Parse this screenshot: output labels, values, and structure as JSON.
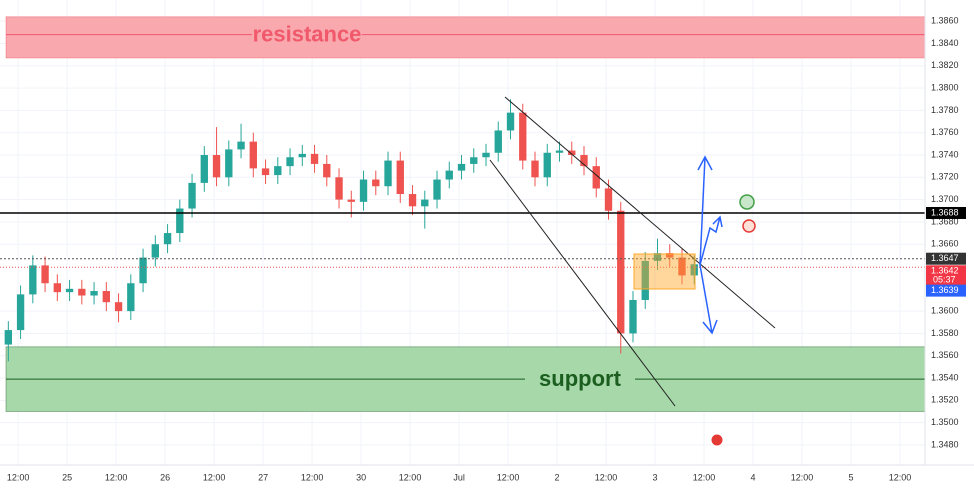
{
  "chart_data": {
    "type": "candlestick",
    "xlim": [
      -0.37,
      18.51
    ],
    "ylim": [
      1.3462,
      1.3879
    ],
    "xticks": [
      {
        "value": 0,
        "label": "12:00"
      },
      {
        "value": 1,
        "label": "25"
      },
      {
        "value": 2,
        "label": "12:00"
      },
      {
        "value": 3,
        "label": "26"
      },
      {
        "value": 4,
        "label": "12:00"
      },
      {
        "value": 5,
        "label": "27"
      },
      {
        "value": 6,
        "label": "12:00"
      },
      {
        "value": 7,
        "label": "30"
      },
      {
        "value": 8,
        "label": "12:00"
      },
      {
        "value": 9,
        "label": "Jul"
      },
      {
        "value": 10,
        "label": "12:00"
      },
      {
        "value": 11,
        "label": "2"
      },
      {
        "value": 12,
        "label": "12:00"
      },
      {
        "value": 13,
        "label": "3"
      },
      {
        "value": 14,
        "label": "12:00"
      },
      {
        "value": 15,
        "label": "4"
      },
      {
        "value": 16,
        "label": "12:00"
      },
      {
        "value": 17,
        "label": "5"
      },
      {
        "value": 18,
        "label": "12:00"
      }
    ],
    "yticks": [
      {
        "value": 1.386,
        "label": "1.3860"
      },
      {
        "value": 1.384,
        "label": "1.3840"
      },
      {
        "value": 1.382,
        "label": "1.3820"
      },
      {
        "value": 1.38,
        "label": "1.3800"
      },
      {
        "value": 1.378,
        "label": "1.3780"
      },
      {
        "value": 1.376,
        "label": "1.3760"
      },
      {
        "value": 1.374,
        "label": "1.3740"
      },
      {
        "value": 1.372,
        "label": "1.3720"
      },
      {
        "value": 1.37,
        "label": "1.3700"
      },
      {
        "value": 1.368,
        "label": "1.3680"
      },
      {
        "value": 1.366,
        "label": "1.3660"
      },
      {
        "value": 1.36,
        "label": "1.3600"
      },
      {
        "value": 1.358,
        "label": "1.3580"
      },
      {
        "value": 1.356,
        "label": "1.3560"
      },
      {
        "value": 1.354,
        "label": "1.3540"
      },
      {
        "value": 1.352,
        "label": "1.3520"
      },
      {
        "value": 1.35,
        "label": "1.3500"
      },
      {
        "value": 1.348,
        "label": "1.3480"
      }
    ],
    "grid": true,
    "up_color": "#26a69a",
    "down_color": "#ef5350",
    "x": [
      -0.2,
      0.05,
      0.3,
      0.55,
      0.8,
      1.05,
      1.3,
      1.55,
      1.8,
      2.05,
      2.3,
      2.55,
      2.8,
      3.05,
      3.3,
      3.55,
      3.8,
      4.05,
      4.3,
      4.55,
      4.8,
      5.05,
      5.3,
      5.55,
      5.8,
      6.05,
      6.3,
      6.55,
      6.8,
      7.05,
      7.3,
      7.55,
      7.8,
      8.05,
      8.3,
      8.55,
      8.8,
      9.05,
      9.3,
      9.55,
      9.8,
      10.05,
      10.3,
      10.55,
      10.8,
      11.05,
      11.3,
      11.55,
      11.8,
      12.05,
      12.3,
      12.55,
      12.8,
      13.05,
      13.3,
      13.55,
      13.8
    ],
    "open": [
      1.357,
      1.3583,
      1.3615,
      1.3641,
      1.3625,
      1.3617,
      1.362,
      1.3614,
      1.3618,
      1.3608,
      1.36,
      1.3625,
      1.3648,
      1.366,
      1.367,
      1.3692,
      1.3715,
      1.374,
      1.372,
      1.3745,
      1.3752,
      1.3728,
      1.3722,
      1.373,
      1.3738,
      1.3741,
      1.3732,
      1.372,
      1.37,
      1.3698,
      1.3718,
      1.3712,
      1.3735,
      1.3705,
      1.3694,
      1.37,
      1.3718,
      1.3726,
      1.3732,
      1.3738,
      1.3742,
      1.3762,
      1.3778,
      1.3735,
      1.372,
      1.3742,
      1.3744,
      1.374,
      1.373,
      1.371,
      1.369,
      1.358,
      1.361,
      1.3645,
      1.3652,
      1.3648,
      1.3632
    ],
    "high": [
      1.3591,
      1.3623,
      1.365,
      1.3649,
      1.3633,
      1.3628,
      1.3628,
      1.3626,
      1.3626,
      1.3616,
      1.3633,
      1.3656,
      1.3668,
      1.3678,
      1.37,
      1.3723,
      1.3748,
      1.3765,
      1.3753,
      1.3768,
      1.376,
      1.3736,
      1.3738,
      1.3746,
      1.3749,
      1.3749,
      1.374,
      1.3728,
      1.3708,
      1.3726,
      1.3726,
      1.3743,
      1.3743,
      1.3713,
      1.3708,
      1.3726,
      1.3734,
      1.374,
      1.3746,
      1.375,
      1.377,
      1.379,
      1.3786,
      1.3743,
      1.375,
      1.3752,
      1.3752,
      1.3748,
      1.3738,
      1.3718,
      1.3698,
      1.3618,
      1.3653,
      1.3665,
      1.366,
      1.3656,
      1.365
    ],
    "low": [
      1.3555,
      1.3575,
      1.3607,
      1.3617,
      1.3609,
      1.3609,
      1.3606,
      1.3606,
      1.36,
      1.359,
      1.3592,
      1.3617,
      1.364,
      1.3652,
      1.3662,
      1.3684,
      1.3707,
      1.3712,
      1.3712,
      1.3737,
      1.372,
      1.3714,
      1.3714,
      1.3722,
      1.373,
      1.3724,
      1.3712,
      1.3692,
      1.3684,
      1.369,
      1.3704,
      1.3704,
      1.3697,
      1.3686,
      1.3674,
      1.3692,
      1.371,
      1.3718,
      1.3724,
      1.373,
      1.3734,
      1.3754,
      1.3727,
      1.3712,
      1.3712,
      1.3734,
      1.3732,
      1.3722,
      1.3702,
      1.3682,
      1.3562,
      1.3572,
      1.3602,
      1.3637,
      1.364,
      1.3624,
      1.3624
    ],
    "close": [
      1.3583,
      1.3615,
      1.3641,
      1.3625,
      1.3617,
      1.362,
      1.3614,
      1.3618,
      1.3608,
      1.36,
      1.3625,
      1.3648,
      1.366,
      1.367,
      1.3692,
      1.3715,
      1.374,
      1.372,
      1.3745,
      1.3752,
      1.3728,
      1.3722,
      1.373,
      1.3738,
      1.3741,
      1.3732,
      1.372,
      1.37,
      1.3698,
      1.3718,
      1.3712,
      1.3735,
      1.3705,
      1.3694,
      1.37,
      1.3718,
      1.3726,
      1.3732,
      1.3738,
      1.3742,
      1.3762,
      1.3778,
      1.3735,
      1.372,
      1.3742,
      1.3744,
      1.374,
      1.373,
      1.371,
      1.369,
      1.358,
      1.361,
      1.3645,
      1.3652,
      1.3648,
      1.3632,
      1.3642
    ],
    "zones": [
      {
        "name": "resistance",
        "range": [
          1.3827,
          1.3864
        ],
        "mid": 1.3848,
        "color": "#f9a8ae",
        "text_color": "#f0596b"
      },
      {
        "name": "support",
        "range": [
          1.351,
          1.3568
        ],
        "mid": 1.3539,
        "color": "#a7d8a9",
        "text_color": "#1b5e20"
      }
    ],
    "level_line": {
      "value": 1.3688,
      "label": "1.3688"
    },
    "last_price": {
      "value": 1.3647,
      "label": "1.3647"
    },
    "bid": {
      "value": 1.3642,
      "label": "1.3642",
      "countdown": "05:37"
    },
    "ask": {
      "value": 1.3639,
      "label": "1.3639"
    }
  }
}
